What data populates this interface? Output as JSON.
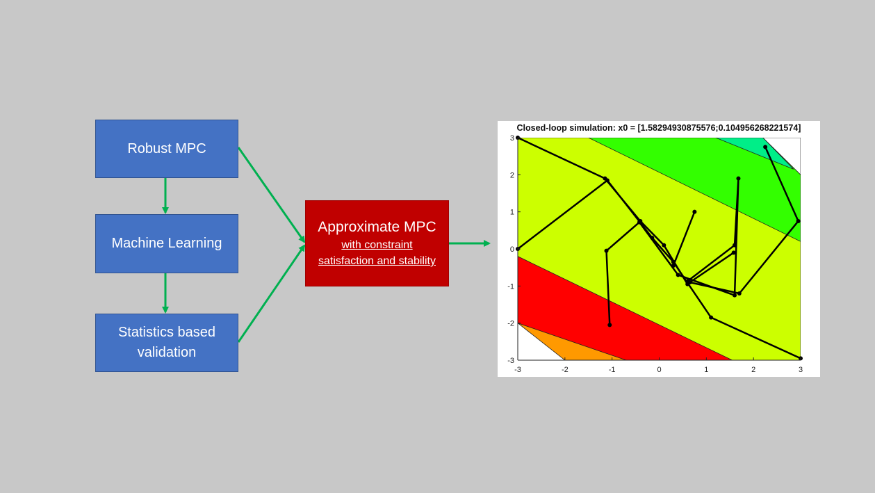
{
  "flow": {
    "robust_mpc": "Robust MPC",
    "machine_learning": "Machine Learning",
    "statistics_line1": "Statistics based",
    "statistics_line2": "validation",
    "approx_title": "Approximate MPC",
    "approx_sub_line1": "with constraint",
    "approx_sub_line2": "satisfaction and stability"
  },
  "colors": {
    "background": "#c8c8c8",
    "blue_box": "#4472c4",
    "red_box": "#c00000",
    "arrow": "#00b050"
  },
  "chart_data": {
    "type": "scatter",
    "title": "Closed-loop simulation: x0 = [1.58294930875576;0.104956268221574]",
    "xlim": [
      -3,
      3
    ],
    "ylim": [
      -3,
      3
    ],
    "xticks": [
      -3,
      -2,
      -1,
      0,
      1,
      2,
      3
    ],
    "yticks": [
      -3,
      -2,
      -1,
      0,
      1,
      2,
      3
    ],
    "regions": [
      {
        "color": "#ccff00",
        "points": [
          [
            -3,
            3
          ],
          [
            2.2,
            3
          ],
          [
            3,
            2
          ],
          [
            3,
            -3
          ],
          [
            -3,
            -3
          ]
        ]
      },
      {
        "color": "#33ff00",
        "points": [
          [
            -1.5,
            3
          ],
          [
            2.2,
            3
          ],
          [
            3,
            2
          ],
          [
            3,
            0.2
          ]
        ]
      },
      {
        "color": "#00ee88",
        "points": [
          [
            1.2,
            3
          ],
          [
            2.2,
            3
          ],
          [
            2.85,
            2.15
          ]
        ]
      },
      {
        "color": "#ff0000",
        "points": [
          [
            -3,
            -0.2
          ],
          [
            1.55,
            -3
          ],
          [
            -3,
            -3
          ]
        ]
      },
      {
        "color": "#ff9900",
        "points": [
          [
            -3,
            -2
          ],
          [
            -0.7,
            -3
          ],
          [
            -3,
            -3
          ]
        ]
      },
      {
        "color": "#ffffff",
        "points": [
          [
            -3,
            -2
          ],
          [
            -2,
            -3
          ],
          [
            -3,
            -3
          ]
        ]
      },
      {
        "color": "#ffffff",
        "points": [
          [
            2.2,
            3
          ],
          [
            3,
            3
          ],
          [
            3,
            2
          ]
        ]
      }
    ],
    "trajectories": [
      [
        [
          -3,
          3
        ],
        [
          -1.15,
          1.9
        ],
        [
          -0.4,
          0.75
        ],
        [
          0.1,
          0.1
        ],
        [
          0.6,
          -0.95
        ]
      ],
      [
        [
          -3,
          0
        ],
        [
          -1.1,
          1.85
        ],
        [
          -0.15,
          0.3
        ],
        [
          0.3,
          -0.35
        ],
        [
          1.1,
          -1.85
        ],
        [
          3,
          -2.95
        ]
      ],
      [
        [
          0.75,
          1.0
        ],
        [
          0.3,
          -0.45
        ]
      ],
      [
        [
          -1.05,
          -2.05
        ],
        [
          -1.12,
          -0.05
        ],
        [
          -0.42,
          0.72
        ],
        [
          0.4,
          -0.7
        ],
        [
          1.6,
          -1.25
        ],
        [
          1.68,
          1.9
        ],
        [
          1.6,
          0.1
        ],
        [
          0.62,
          -0.85
        ]
      ],
      [
        [
          2.25,
          2.75
        ],
        [
          2.95,
          0.75
        ],
        [
          1.7,
          -1.2
        ],
        [
          0.65,
          -0.9
        ],
        [
          1.58,
          -0.1
        ]
      ]
    ]
  }
}
